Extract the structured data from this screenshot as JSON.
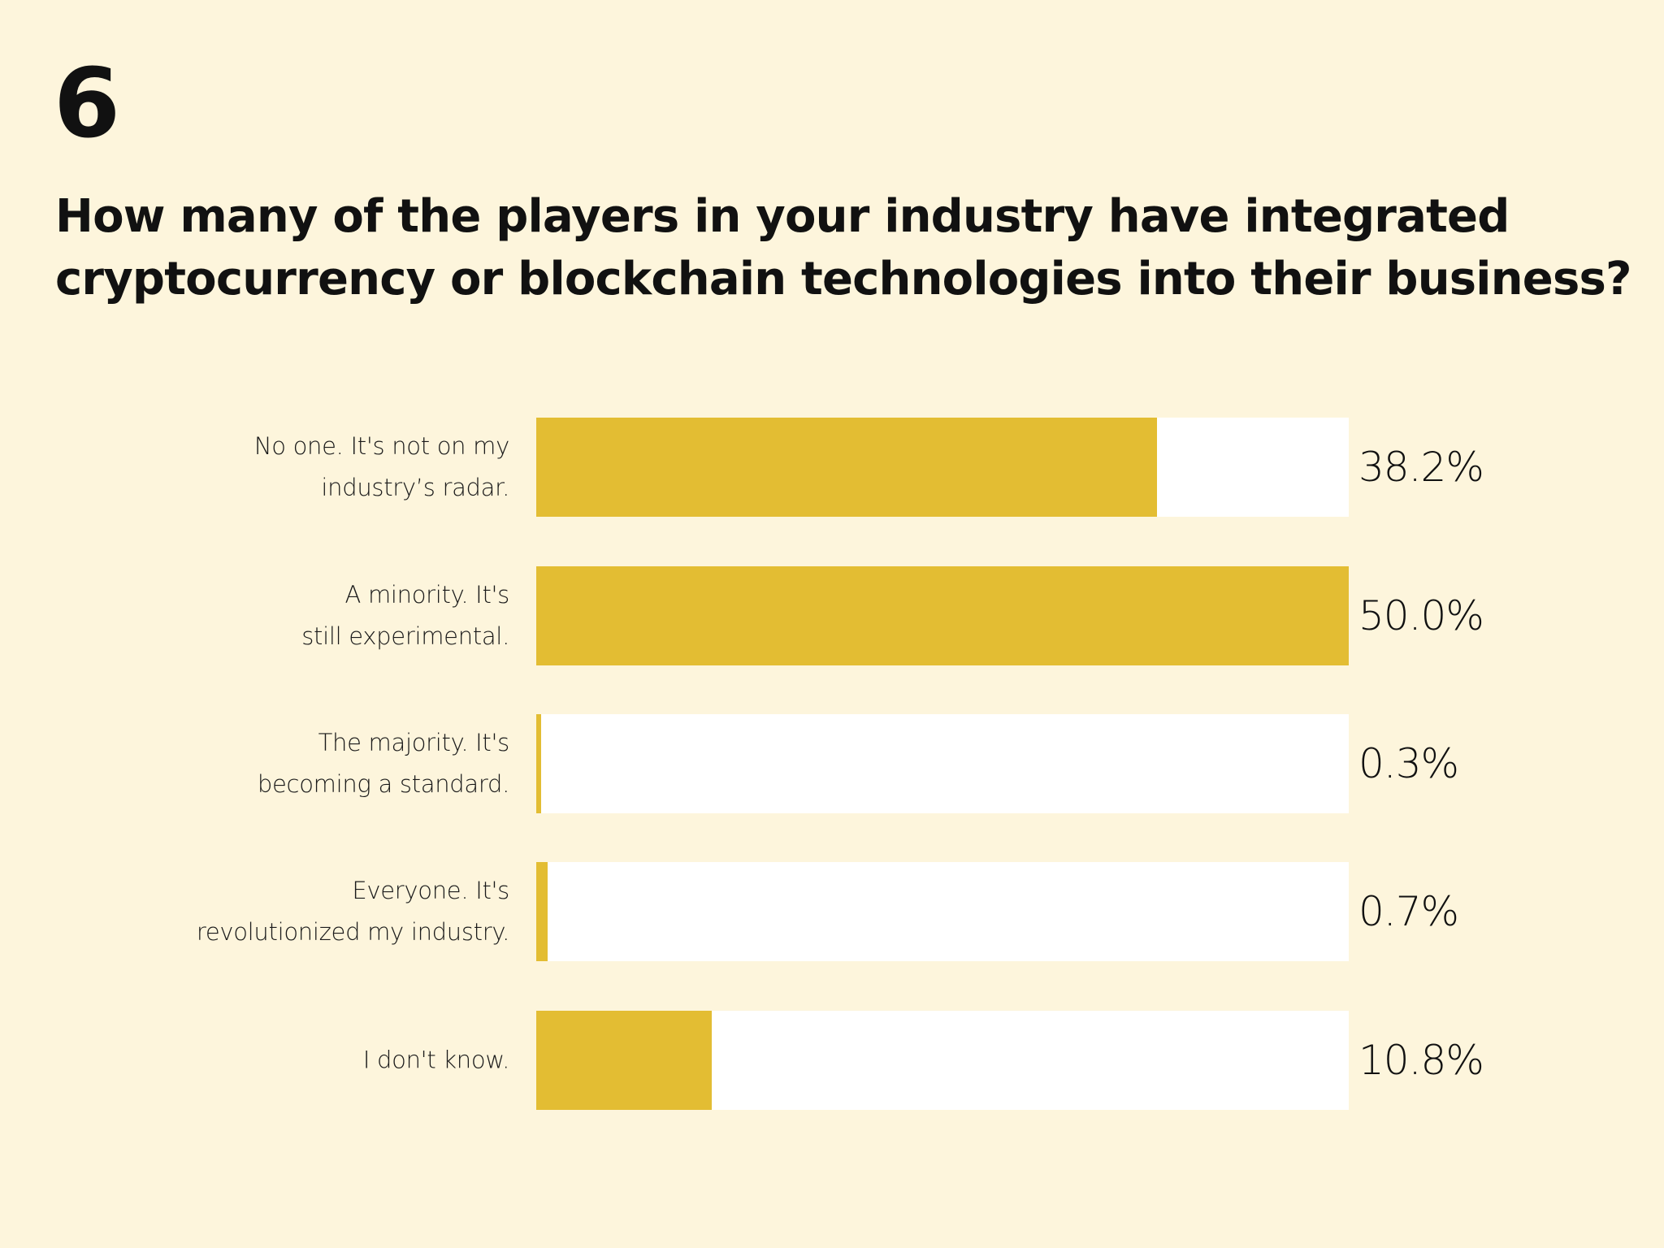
{
  "header": {
    "question_number": "6",
    "title_lines": [
      "How many of the players in your industry have integrated",
      "cryptocurrency or blockchain technologies into their business?"
    ]
  },
  "colors": {
    "background": "#fdf5dc",
    "bar_fill": "#e3bd33",
    "bar_track": "#ffffff"
  },
  "rows": [
    {
      "label_lines": [
        "No one. It's not on my",
        "industry’s radar."
      ],
      "value": "38.2%",
      "pct": 38.2
    },
    {
      "label_lines": [
        "A minority. It's",
        "still experimental."
      ],
      "value": "50.0%",
      "pct": 50.0
    },
    {
      "label_lines": [
        "The majority. It's",
        "becoming a standard."
      ],
      "value": "0.3%",
      "pct": 0.3
    },
    {
      "label_lines": [
        "Everyone. It's",
        "revolutionized my industry."
      ],
      "value": "0.7%",
      "pct": 0.7
    },
    {
      "label_lines": [
        "I don't know."
      ],
      "value": "10.8%",
      "pct": 10.8
    }
  ],
  "chart_data": {
    "type": "bar",
    "orientation": "horizontal",
    "title": "How many of the players in your industry have integrated cryptocurrency or blockchain technologies into their business?",
    "categories": [
      "No one. It's not on my industry’s radar.",
      "A minority. It's still experimental.",
      "The majority. It's becoming a standard.",
      "Everyone. It's revolutionized my industry.",
      "I don't know."
    ],
    "values": [
      38.2,
      50.0,
      0.3,
      0.7,
      10.8
    ],
    "value_labels": [
      "38.2%",
      "50.0%",
      "0.3%",
      "0.7%",
      "10.8%"
    ],
    "xlabel": "",
    "ylabel": "",
    "xlim": [
      0,
      50
    ],
    "grid": false,
    "legend": null
  }
}
